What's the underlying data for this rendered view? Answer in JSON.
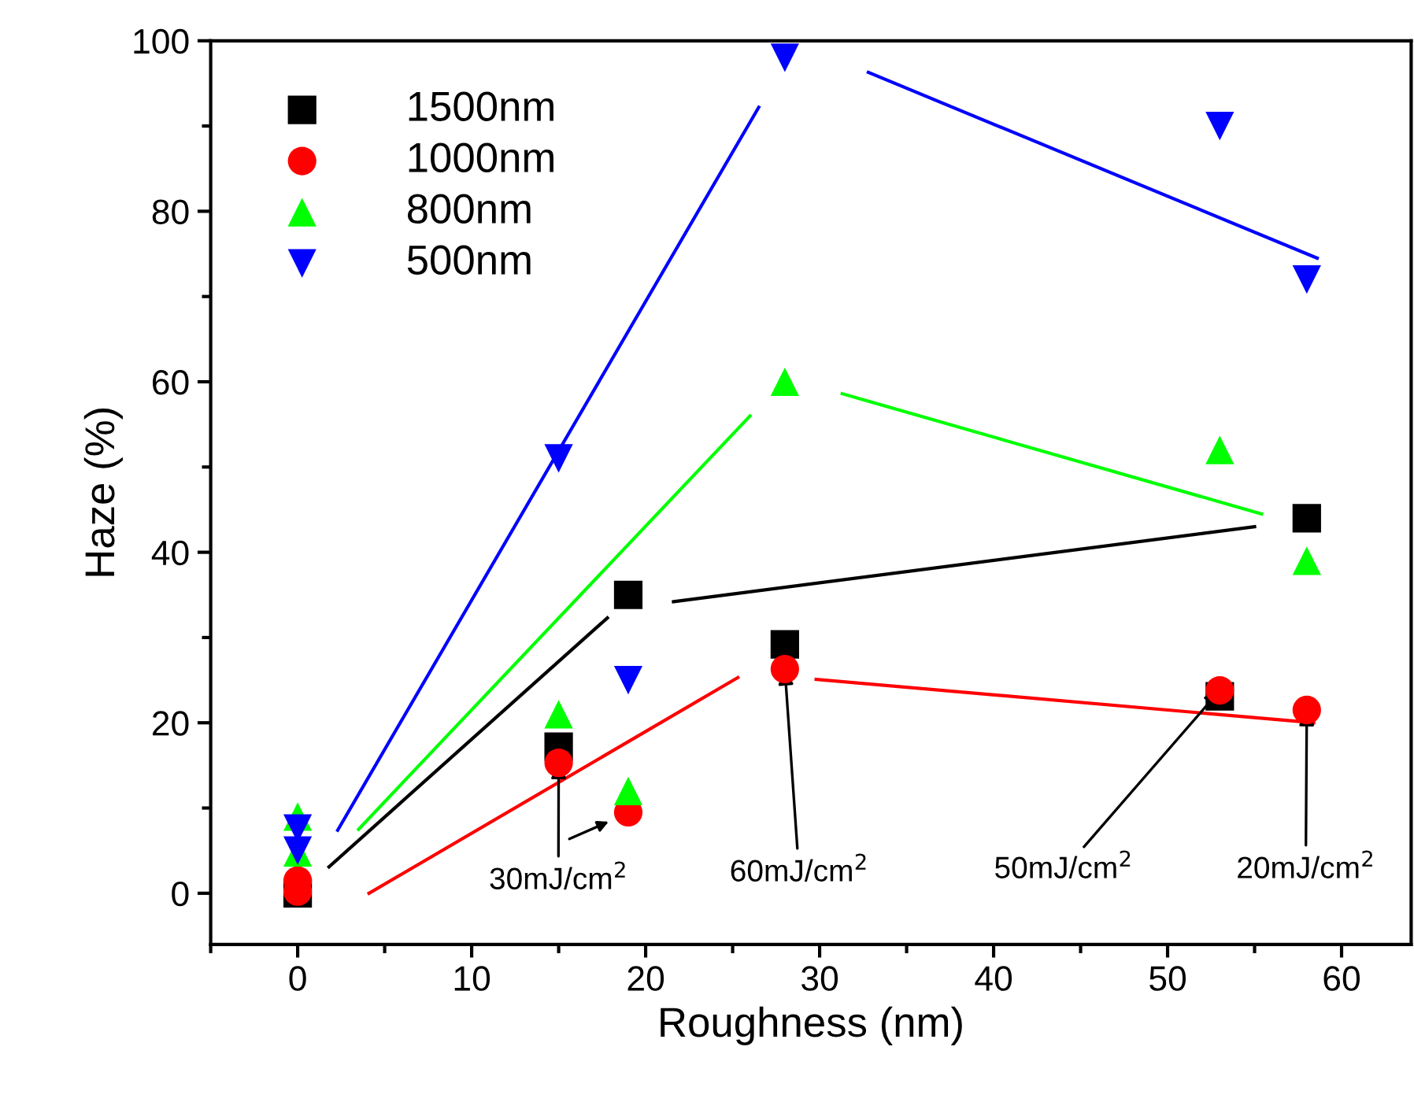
{
  "chart_data": {
    "type": "scatter",
    "xlabel": "Roughness (nm)",
    "ylabel": "Haze (%)",
    "xlim": [
      -5,
      64
    ],
    "ylim": [
      -6,
      100
    ],
    "xticks": [
      0,
      10,
      20,
      30,
      40,
      50,
      60
    ],
    "yticks": [
      0,
      20,
      40,
      60,
      80,
      100
    ],
    "grid": false,
    "legend": "top left",
    "series": [
      {
        "name": "1500nm",
        "color": "#000000",
        "marker": "square",
        "x": [
          0,
          15,
          19,
          28,
          53,
          58
        ],
        "values": [
          0,
          17.2,
          35,
          29.2,
          23.1,
          44
        ]
      },
      {
        "name": "1000nm",
        "color": "#ff0000",
        "marker": "circle",
        "x": [
          0,
          0,
          15,
          19,
          28,
          53,
          58
        ],
        "values": [
          1.5,
          0.2,
          15.3,
          9.5,
          26.3,
          23.8,
          21.5
        ]
      },
      {
        "name": "800nm",
        "color": "#00ff00",
        "marker": "triangle",
        "x": [
          0,
          0,
          15,
          19,
          28,
          53,
          58
        ],
        "values": [
          9,
          4.8,
          21,
          12,
          60,
          52,
          39
        ]
      },
      {
        "name": "500nm",
        "color": "#0000ff",
        "marker": "triangle_down",
        "x": [
          0,
          0,
          15,
          19,
          28,
          53,
          58
        ],
        "values": [
          7.6,
          5,
          51,
          25,
          98,
          90,
          72
        ]
      },
      {
        "type": "line",
        "color": "#0000ff",
        "x": [
          2.3,
          26.5
        ],
        "values": [
          7.4,
          92.2
        ]
      },
      {
        "type": "line",
        "color": "#0000ff",
        "x": [
          32.8,
          58.6
        ],
        "values": [
          96.3,
          74.5
        ]
      },
      {
        "type": "line",
        "color": "#00ff00",
        "x": [
          3.5,
          26
        ],
        "values": [
          7.5,
          56
        ]
      },
      {
        "type": "line",
        "color": "#00ff00",
        "x": [
          31.3,
          55.4
        ],
        "values": [
          58.6,
          44.5
        ]
      },
      {
        "type": "line",
        "color": "#000000",
        "x": [
          1.8,
          17.8
        ],
        "values": [
          3.1,
          32.3
        ]
      },
      {
        "type": "line",
        "color": "#000000",
        "x": [
          21.6,
          55
        ],
        "values": [
          34.2,
          43
        ]
      },
      {
        "type": "line",
        "color": "#ff0000",
        "x": [
          4.1,
          25.3
        ],
        "values": [
          0,
          25.3
        ]
      },
      {
        "type": "line",
        "color": "#ff0000",
        "x": [
          29.8,
          58.4
        ],
        "values": [
          25.1,
          20
        ]
      }
    ],
    "annotations": [
      {
        "text": "30mJ/cm$^{2}$",
        "x": 15,
        "y": 15.3
      },
      {
        "text": "60mJ/cm$^{2}$",
        "x": 28,
        "y": 26.3
      },
      {
        "text": "50mJ/cm$^{2}$",
        "x": 53,
        "y": 23.8
      },
      {
        "text": "20mJ/cm$^{2}$",
        "x": 58,
        "y": 21.5
      }
    ]
  }
}
